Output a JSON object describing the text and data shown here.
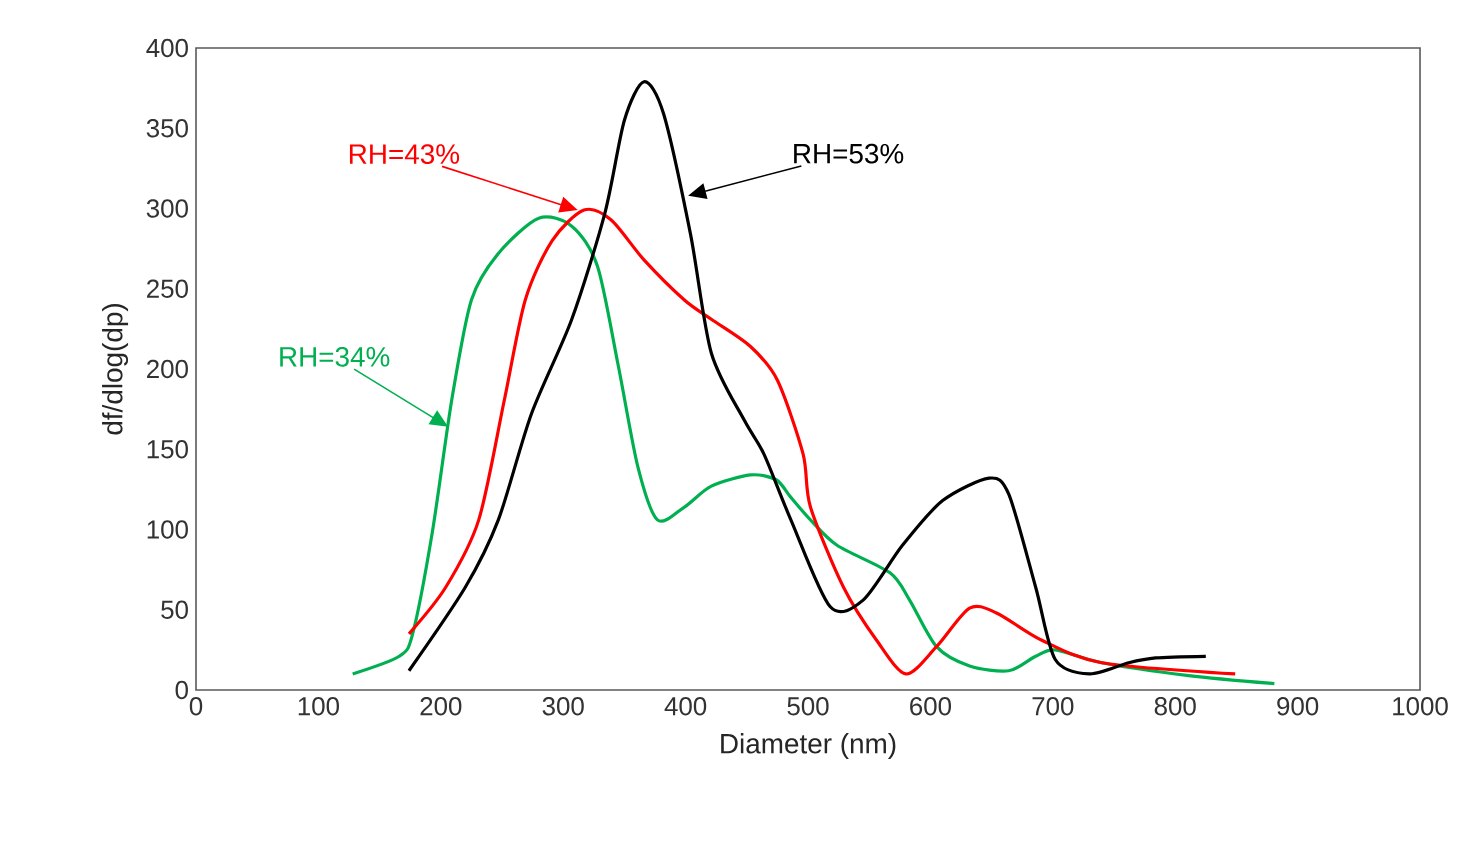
{
  "chart_data": {
    "type": "line",
    "xlabel": "Diameter (nm)",
    "ylabel": "df/dlog(dp)",
    "xlim": [
      0,
      1000
    ],
    "ylim": [
      0,
      400
    ],
    "xticks": [
      0,
      100,
      200,
      300,
      400,
      500,
      600,
      700,
      800,
      900,
      1000
    ],
    "yticks": [
      0,
      50,
      100,
      150,
      200,
      250,
      300,
      350,
      400
    ],
    "grid": false,
    "marker": "none",
    "line_style": "solid",
    "series": [
      {
        "color": "#00b050",
        "x": [
          128,
          166,
          177,
          193,
          209,
          225,
          247,
          280,
          307,
          328,
          345,
          361,
          377,
          399,
          421,
          453,
          474,
          486,
          502,
          524,
          567,
          583,
          605,
          632,
          664,
          686,
          702,
          740,
          811,
          881
        ],
        "values": [
          10,
          21,
          35,
          98,
          181,
          243,
          272,
          294,
          289,
          264,
          202,
          139,
          106,
          114,
          127,
          134,
          131,
          120,
          106,
          90,
          73,
          56,
          27,
          15,
          12,
          21,
          25,
          17,
          9,
          4
        ]
      },
      {
        "color": "#ff0000",
        "x": [
          174,
          204,
          231,
          252,
          269,
          291,
          317,
          339,
          366,
          399,
          421,
          453,
          475,
          496,
          502,
          529,
          556,
          580,
          605,
          632,
          654,
          691,
          740,
          849
        ],
        "values": [
          35,
          64,
          106,
          181,
          243,
          280,
          299,
          293,
          268,
          243,
          231,
          214,
          193,
          147,
          114,
          64,
          31,
          10,
          27,
          51,
          48,
          31,
          17,
          10
        ]
      },
      {
        "color": "#000000",
        "x": [
          174,
          220,
          247,
          274,
          307,
          334,
          350,
          366,
          382,
          404,
          421,
          448,
          464,
          486,
          518,
          545,
          577,
          610,
          648,
          664,
          686,
          702,
          730,
          762,
          784,
          825
        ],
        "values": [
          12,
          64,
          106,
          172,
          231,
          297,
          355,
          379,
          359,
          284,
          210,
          168,
          147,
          106,
          52,
          56,
          90,
          118,
          132,
          122,
          64,
          19,
          10,
          17,
          20,
          21
        ]
      }
    ],
    "annotations": [
      {
        "text": "RH=34%",
        "x": 206,
        "y": 164
      },
      {
        "text": "RH=43%",
        "x": 312,
        "y": 299
      },
      {
        "text": "RH=53%",
        "x": 402,
        "y": 308
      }
    ]
  }
}
